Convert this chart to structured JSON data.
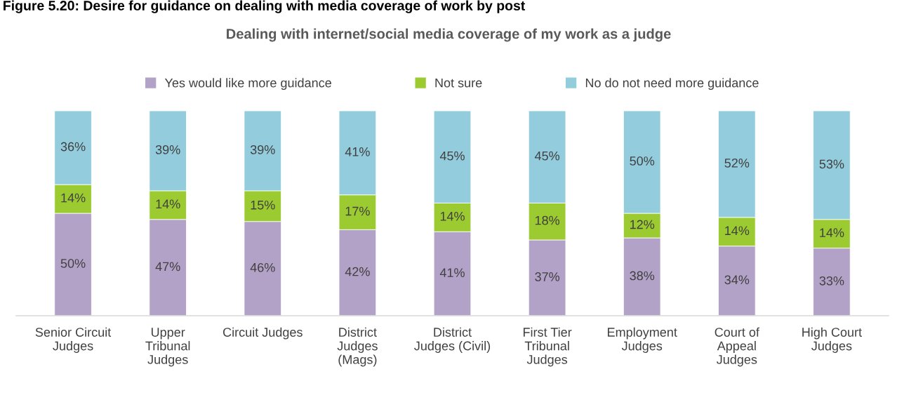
{
  "chart_data": {
    "type": "bar",
    "title": "Dealing with internet/social media coverage of my work as a judge",
    "annotations": [
      "Figure 5.20: Desire for guidance on dealing with media coverage of work by post"
    ],
    "categories": [
      "Senior Circuit\nJudges",
      "Upper\nTribunal\nJudges",
      "Circuit Judges",
      "District\nJudges\n(Mags)",
      "District\nJudges (Civil)",
      "First Tier\nTribunal\nJudges",
      "Employment\nJudges",
      "Court of\nAppeal\nJudges",
      "High Court\nJudges"
    ],
    "series": [
      {
        "name": "Yes would like more guidance",
        "color": "#b3a2c7",
        "values": [
          50,
          47,
          46,
          42,
          41,
          37,
          38,
          34,
          33
        ],
        "value_labels": [
          "50%",
          "47%",
          "46%",
          "42%",
          "41%",
          "37%",
          "38%",
          "34%",
          "33%"
        ]
      },
      {
        "name": "Not sure",
        "color": "#9bcb30",
        "values": [
          14,
          14,
          15,
          17,
          14,
          18,
          12,
          14,
          14
        ],
        "value_labels": [
          "14%",
          "14%",
          "15%",
          "17%",
          "14%",
          "18%",
          "12%",
          "14%",
          "14%"
        ]
      },
      {
        "name": "No do not need more guidance",
        "color": "#93cddd",
        "values": [
          36,
          39,
          39,
          41,
          45,
          45,
          50,
          52,
          53
        ],
        "value_labels": [
          "36%",
          "39%",
          "39%",
          "41%",
          "45%",
          "45%",
          "50%",
          "52%",
          "53%"
        ]
      }
    ],
    "stacked": true,
    "legend": "top"
  }
}
